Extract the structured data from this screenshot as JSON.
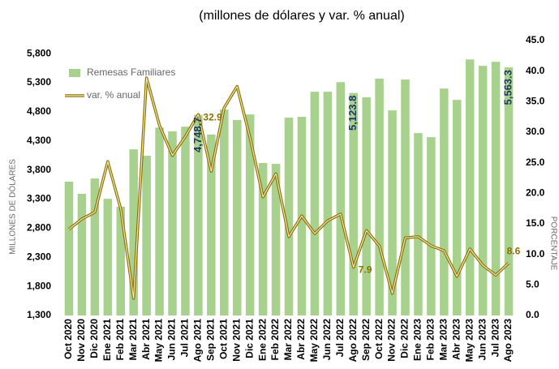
{
  "chart_data": {
    "type": "bar_line",
    "title": "(millones de dólares y var. % anual)",
    "ylabel": "MILLONES DE DÓLARES",
    "y2label": "PORCENTAJE",
    "categories": [
      "Oct 2020",
      "Nov 2020",
      "Dic 2020",
      "Ene 2021",
      "Feb 2021",
      "Mar 2021",
      "Abr 2021",
      "May 2021",
      "Jun 2021",
      "Jul 2021",
      "Ago 2021",
      "Sep 2021",
      "Oct 2021",
      "Nov 2021",
      "Dic 2021",
      "Ene 2022",
      "Feb 2022",
      "Mar 2022",
      "Abr 2022",
      "May 2022",
      "Jun 2022",
      "Jul 2022",
      "Ago 2022",
      "Sep 2022",
      "Oct 2022",
      "Nov 2022",
      "Dic 2022",
      "Ene 2023",
      "Feb 2023",
      "Mar 2023",
      "Abr 2023",
      "May 2023",
      "Jun 2023",
      "Jul 2023",
      "Ago 2023"
    ],
    "series": [
      {
        "name": "Remesas Familiares",
        "type": "bar",
        "color": "#a9d18e",
        "values": [
          3600,
          3390,
          3655,
          3305,
          3170,
          4155,
          4045,
          4530,
          4465,
          4545,
          4748.7,
          4410,
          4840,
          4660,
          4755,
          3920,
          3905,
          4700,
          4715,
          5145,
          5145,
          5310,
          5123.8,
          5050,
          5370,
          4825,
          5355,
          4435,
          4365,
          5200,
          5005,
          5700,
          5590,
          5660,
          5563.3
        ],
        "value_labels": [
          null,
          null,
          null,
          null,
          null,
          null,
          null,
          null,
          null,
          null,
          "4,748.7",
          null,
          null,
          null,
          null,
          null,
          null,
          null,
          null,
          null,
          null,
          null,
          "5,123.8",
          null,
          null,
          null,
          null,
          null,
          null,
          null,
          null,
          null,
          null,
          null,
          "5,563.3"
        ],
        "label_color": "#1f3864"
      },
      {
        "name": "var. % anual",
        "type": "line",
        "axis": "y2",
        "color": "#8b7000",
        "values": [
          14.1,
          15.8,
          16.9,
          25.2,
          17.5,
          2.8,
          38.9,
          31.1,
          26.2,
          29.3,
          32.9,
          23.6,
          34.0,
          37.5,
          29.1,
          19.4,
          23.2,
          12.9,
          16.3,
          13.4,
          15.5,
          16.6,
          7.9,
          13.9,
          11.4,
          3.6,
          12.7,
          12.9,
          11.4,
          10.6,
          6.4,
          10.9,
          8.2,
          6.6,
          8.6
        ],
        "value_labels": [
          null,
          null,
          null,
          null,
          null,
          null,
          null,
          null,
          null,
          null,
          "32.9",
          null,
          null,
          null,
          null,
          null,
          null,
          null,
          null,
          null,
          null,
          null,
          "7.9",
          null,
          null,
          null,
          null,
          null,
          null,
          null,
          null,
          null,
          null,
          null,
          "8.6"
        ],
        "label_color": "#8b7000"
      }
    ],
    "ylim": [
      1300,
      6025
    ],
    "yticks": [
      {
        "value": 1300,
        "label": "1,300"
      },
      {
        "value": 1800,
        "label": "1,800"
      },
      {
        "value": 2300,
        "label": "2,300"
      },
      {
        "value": 2800,
        "label": "2,800"
      },
      {
        "value": 3300,
        "label": "3,300"
      },
      {
        "value": 3800,
        "label": "3,800"
      },
      {
        "value": 4300,
        "label": "4,300"
      },
      {
        "value": 4800,
        "label": "4,800"
      },
      {
        "value": 5300,
        "label": "5,300"
      },
      {
        "value": 5800,
        "label": "5,800"
      }
    ],
    "y2lim": [
      0,
      45
    ],
    "y2ticks": [
      {
        "value": 0,
        "label": "0.0"
      },
      {
        "value": 5,
        "label": "5.0"
      },
      {
        "value": 10,
        "label": "10.0"
      },
      {
        "value": 15,
        "label": "15.0"
      },
      {
        "value": 20,
        "label": "20.0"
      },
      {
        "value": 25,
        "label": "25.0"
      },
      {
        "value": 30,
        "label": "30.0"
      },
      {
        "value": 35,
        "label": "35.0"
      },
      {
        "value": 40,
        "label": "40.0"
      },
      {
        "value": 45,
        "label": "45.0"
      }
    ],
    "legend": "upper left",
    "grid": false
  }
}
